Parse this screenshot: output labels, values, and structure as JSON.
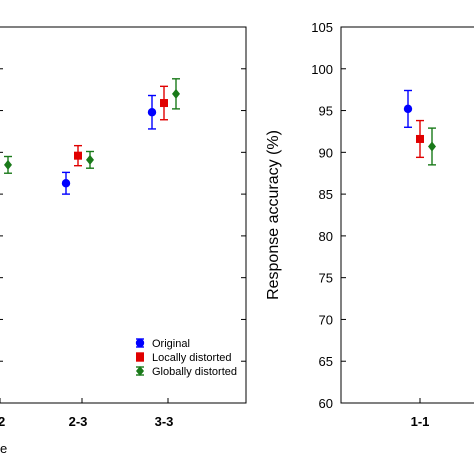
{
  "chart_data": [
    {
      "type": "scatter",
      "categories": [
        "2",
        "2-3",
        "3-3"
      ],
      "category_labels": [
        "2",
        "2-3",
        "3-3"
      ],
      "xlabel_fragment": "e",
      "series": [
        {
          "name": "Original",
          "color": "#0000ff",
          "marker": "circle",
          "points": [
            {
              "cat": "2-3",
              "value": 86.3,
              "err": 1.3
            },
            {
              "cat": "3-3",
              "value": 94.8,
              "err": 2.0
            }
          ]
        },
        {
          "name": "Locally distorted",
          "color": "#e00000",
          "marker": "square",
          "points": [
            {
              "cat": "2-3",
              "value": 89.6,
              "err": 1.2
            },
            {
              "cat": "3-3",
              "value": 95.9,
              "err": 2.0
            }
          ]
        },
        {
          "name": "Globally distorted",
          "color": "#1a7a1a",
          "marker": "diamond",
          "points": [
            {
              "cat": "2",
              "value": 88.5,
              "err": 1.0
            },
            {
              "cat": "2-3",
              "value": 89.1,
              "err": 1.0
            },
            {
              "cat": "3-3",
              "value": 97.0,
              "err": 1.8
            }
          ]
        }
      ],
      "legend": {
        "position": "bottom-right",
        "entries": [
          "Original",
          "Locally distorted",
          "Globally distorted"
        ]
      },
      "grid": false
    },
    {
      "type": "scatter",
      "categories": [
        "1-1"
      ],
      "category_labels": [
        "1-1"
      ],
      "ylabel": "Response accuracy (%)",
      "ylim": [
        60,
        105
      ],
      "yticks": [
        "60",
        "65",
        "70",
        "75",
        "80",
        "85",
        "90",
        "95",
        "100",
        "105"
      ],
      "series": [
        {
          "name": "Original",
          "color": "#0000ff",
          "marker": "circle",
          "points": [
            {
              "cat": "1-1",
              "value": 95.2,
              "err": 2.2
            }
          ]
        },
        {
          "name": "Locally distorted",
          "color": "#e00000",
          "marker": "square",
          "points": [
            {
              "cat": "1-1",
              "value": 91.6,
              "err": 2.2
            }
          ]
        },
        {
          "name": "Globally distorted",
          "color": "#1a7a1a",
          "marker": "diamond",
          "points": [
            {
              "cat": "1-1",
              "value": 90.7,
              "err": 2.2
            }
          ]
        }
      ],
      "grid": false
    }
  ]
}
